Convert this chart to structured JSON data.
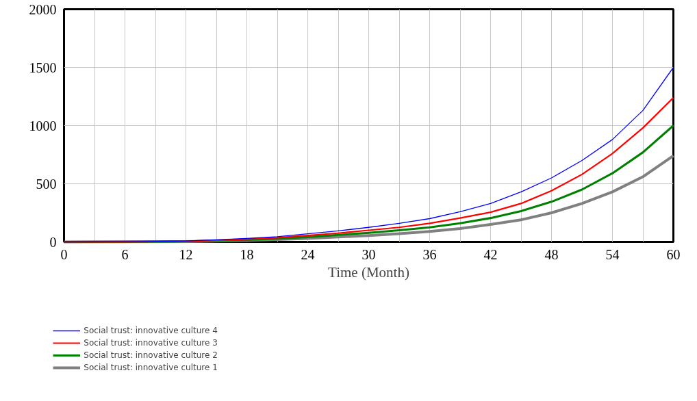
{
  "chart_data": {
    "type": "line",
    "xlabel": "Time (Month)",
    "x": [
      0,
      6,
      12,
      15,
      18,
      21,
      24,
      27,
      30,
      33,
      36,
      39,
      42,
      45,
      48,
      51,
      54,
      57,
      60
    ],
    "xlim": [
      0,
      60
    ],
    "xticks": [
      0,
      {
        "value": 3,
        "label": null
      },
      6,
      {
        "value": 9,
        "label": null
      },
      12,
      {
        "value": 15,
        "label": null
      },
      18,
      {
        "value": 21,
        "label": null
      },
      24,
      {
        "value": 27,
        "label": null
      },
      30,
      {
        "value": 33,
        "label": null
      },
      36,
      {
        "value": 39,
        "label": null
      },
      42,
      {
        "value": 45,
        "label": null
      },
      48,
      {
        "value": 51,
        "label": null
      },
      54,
      {
        "value": 57,
        "label": null
      },
      60
    ],
    "ylim": [
      0,
      2000
    ],
    "yticks": [
      0,
      500,
      1000,
      1500,
      2000
    ],
    "grid": true,
    "legend": "bottom",
    "series": [
      {
        "name": "Social trust: innovative culture 4",
        "color": "#0000ff",
        "values": [
          0,
          2,
          8,
          18,
          30,
          45,
          70,
          95,
          125,
          160,
          200,
          260,
          330,
          430,
          550,
          700,
          880,
          1130,
          1500
        ]
      },
      {
        "name": "Social trust: innovative culture 3",
        "color": "#ff0000",
        "values": [
          0,
          1,
          6,
          14,
          24,
          36,
          55,
          75,
          100,
          125,
          160,
          205,
          255,
          330,
          440,
          580,
          760,
          980,
          1240
        ]
      },
      {
        "name": "Social trust: innovative culture 2",
        "color": "#008000",
        "values": [
          0,
          1,
          4,
          10,
          18,
          28,
          42,
          60,
          78,
          100,
          125,
          160,
          205,
          265,
          345,
          450,
          590,
          770,
          1000
        ]
      },
      {
        "name": "Social trust: innovative culture 1",
        "color": "#808080",
        "values": [
          0,
          1,
          3,
          7,
          13,
          20,
          30,
          42,
          55,
          70,
          90,
          115,
          150,
          190,
          250,
          330,
          430,
          560,
          740
        ]
      }
    ]
  }
}
